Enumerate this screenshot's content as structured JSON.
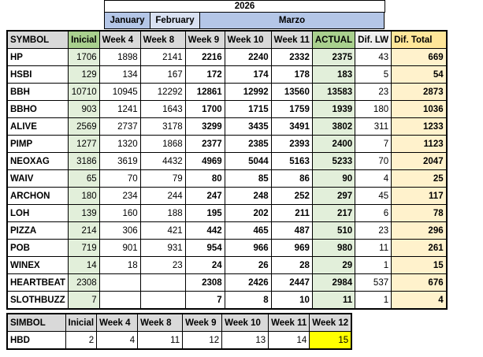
{
  "title": "2026",
  "colors": {
    "month_blue": "#B4C6E7",
    "month_light": "#D9E1F2",
    "gray": "#D9D9D9",
    "green_hdr": "#A9D08E",
    "green_cell": "#E2EFDA",
    "tan_hdr": "#FFE699",
    "tan_cell": "#FFF2CC",
    "diflw_hdr": "#EFEFEF",
    "yellow": "#FFFF00"
  },
  "main_table": {
    "months": [
      "January",
      "February",
      "Marzo"
    ],
    "columns": [
      "SYMBOL",
      "Inicial",
      "Week 4",
      "Week 8",
      "Week 9",
      "Week 10",
      "Week 11",
      "ACTUAL",
      "Dif. LW",
      "Dif. Total"
    ],
    "rows": [
      [
        "HP",
        1706,
        1898,
        2141,
        2216,
        2240,
        2332,
        2375,
        43,
        669
      ],
      [
        "HSBI",
        129,
        134,
        167,
        172,
        174,
        178,
        183,
        5,
        54
      ],
      [
        "BBH",
        10710,
        10945,
        12292,
        12861,
        12992,
        13560,
        13583,
        23,
        2873
      ],
      [
        "BBHO",
        903,
        1241,
        1643,
        1700,
        1715,
        1759,
        1939,
        180,
        1036
      ],
      [
        "ALIVE",
        2569,
        2737,
        3178,
        3299,
        3435,
        3491,
        3802,
        311,
        1233
      ],
      [
        "PIMP",
        1277,
        1320,
        1868,
        2377,
        2385,
        2393,
        2400,
        7,
        1123
      ],
      [
        "NEOXAG",
        3186,
        3619,
        4432,
        4969,
        5044,
        5163,
        5233,
        70,
        2047
      ],
      [
        "WAIV",
        65,
        70,
        79,
        80,
        85,
        86,
        90,
        4,
        25
      ],
      [
        "ARCHON",
        180,
        234,
        244,
        247,
        248,
        252,
        297,
        45,
        117
      ],
      [
        "LOH",
        139,
        160,
        188,
        195,
        202,
        211,
        217,
        6,
        78
      ],
      [
        "PIZZA",
        214,
        306,
        421,
        442,
        465,
        487,
        510,
        23,
        296
      ],
      [
        "POB",
        719,
        901,
        931,
        954,
        966,
        969,
        980,
        11,
        261
      ],
      [
        "WINEX",
        14,
        18,
        23,
        24,
        26,
        28,
        29,
        1,
        15
      ],
      [
        "HEARTBEAT",
        2308,
        "",
        "",
        2308,
        2426,
        2447,
        2984,
        537,
        676
      ],
      [
        "SLOTHBUZZ",
        7,
        "",
        "",
        7,
        8,
        10,
        11,
        1,
        4
      ]
    ]
  },
  "bottom_table": {
    "columns": [
      "SIMBOL",
      "Inicial",
      "Week 4",
      "Week 8",
      "Week 9",
      "Week 10",
      "Week 11",
      "Week 12"
    ],
    "rows": [
      {
        "cells": [
          "HBD",
          2,
          4,
          11,
          12,
          13,
          14,
          15
        ],
        "highlight_last_cell": true
      }
    ]
  }
}
